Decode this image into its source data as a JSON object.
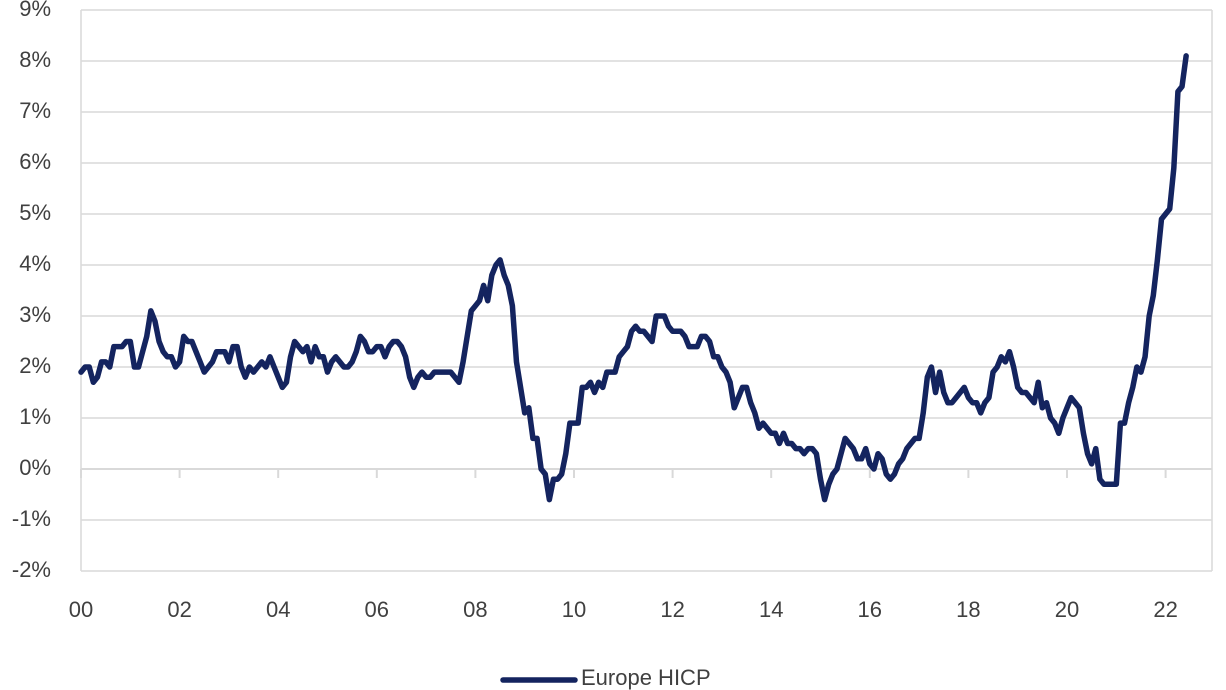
{
  "chart_data": {
    "type": "line",
    "categories": [
      "00",
      null,
      null,
      null,
      null,
      null,
      null,
      null,
      null,
      null,
      null,
      null,
      null,
      null,
      null,
      null,
      null,
      null,
      null,
      null,
      null,
      null,
      null,
      null,
      "02",
      null,
      null,
      null,
      null,
      null,
      null,
      null,
      null,
      null,
      null,
      null,
      null,
      null,
      null,
      null,
      null,
      null,
      null,
      null,
      null,
      null,
      null,
      null,
      "04",
      null,
      null,
      null,
      null,
      null,
      null,
      null,
      null,
      null,
      null,
      null,
      null,
      null,
      null,
      null,
      null,
      null,
      null,
      null,
      null,
      null,
      null,
      null,
      "06",
      null,
      null,
      null,
      null,
      null,
      null,
      null,
      null,
      null,
      null,
      null,
      null,
      null,
      null,
      null,
      null,
      null,
      null,
      null,
      null,
      null,
      null,
      null,
      "08",
      null,
      null,
      null,
      null,
      null,
      null,
      null,
      null,
      null,
      null,
      null,
      null,
      null,
      null,
      null,
      null,
      null,
      null,
      null,
      null,
      null,
      null,
      null,
      "10",
      null,
      null,
      null,
      null,
      null,
      null,
      null,
      null,
      null,
      null,
      null,
      null,
      null,
      null,
      null,
      null,
      null,
      null,
      null,
      null,
      null,
      null,
      null,
      "12",
      null,
      null,
      null,
      null,
      null,
      null,
      null,
      null,
      null,
      null,
      null,
      null,
      null,
      null,
      null,
      null,
      null,
      null,
      null,
      null,
      null,
      null,
      null,
      "14",
      null,
      null,
      null,
      null,
      null,
      null,
      null,
      null,
      null,
      null,
      null,
      null,
      null,
      null,
      null,
      null,
      null,
      null,
      null,
      null,
      null,
      null,
      null,
      "16",
      null,
      null,
      null,
      null,
      null,
      null,
      null,
      null,
      null,
      null,
      null,
      null,
      null,
      null,
      null,
      null,
      null,
      null,
      null,
      null,
      null,
      null,
      null,
      "18",
      null,
      null,
      null,
      null,
      null,
      null,
      null,
      null,
      null,
      null,
      null,
      null,
      null,
      null,
      null,
      null,
      null,
      null,
      null,
      null,
      null,
      null,
      null,
      "20",
      null,
      null,
      null,
      null,
      null,
      null,
      null,
      null,
      null,
      null,
      null,
      null,
      null,
      null,
      null,
      null,
      null,
      null,
      null,
      null,
      null,
      null,
      null,
      "22",
      null,
      null,
      null,
      null,
      null
    ],
    "series": [
      {
        "name": "Europe HICP",
        "color": "#14245f",
        "values": [
          1.9,
          2.0,
          2.0,
          1.7,
          1.8,
          2.1,
          2.1,
          2.0,
          2.4,
          2.4,
          2.4,
          2.5,
          2.5,
          2.0,
          2.0,
          2.3,
          2.6,
          3.1,
          2.9,
          2.5,
          2.3,
          2.2,
          2.2,
          2.0,
          2.1,
          2.6,
          2.5,
          2.5,
          2.3,
          2.1,
          1.9,
          2.0,
          2.1,
          2.3,
          2.3,
          2.3,
          2.1,
          2.4,
          2.4,
          2.0,
          1.8,
          2.0,
          1.9,
          2.0,
          2.1,
          2.0,
          2.2,
          2.0,
          1.8,
          1.6,
          1.7,
          2.2,
          2.5,
          2.4,
          2.3,
          2.4,
          2.1,
          2.4,
          2.2,
          2.2,
          1.9,
          2.1,
          2.2,
          2.1,
          2.0,
          2.0,
          2.1,
          2.3,
          2.6,
          2.5,
          2.3,
          2.3,
          2.4,
          2.4,
          2.2,
          2.4,
          2.5,
          2.5,
          2.4,
          2.2,
          1.8,
          1.6,
          1.8,
          1.9,
          1.8,
          1.8,
          1.9,
          1.9,
          1.9,
          1.9,
          1.9,
          1.8,
          1.7,
          2.1,
          2.6,
          3.1,
          3.2,
          3.3,
          3.6,
          3.3,
          3.8,
          4.0,
          4.1,
          3.8,
          3.6,
          3.2,
          2.1,
          1.6,
          1.1,
          1.2,
          0.6,
          0.6,
          0.0,
          -0.1,
          -0.6,
          -0.2,
          -0.2,
          -0.1,
          0.3,
          0.9,
          0.9,
          0.9,
          1.6,
          1.6,
          1.7,
          1.5,
          1.7,
          1.6,
          1.9,
          1.9,
          1.9,
          2.2,
          2.3,
          2.4,
          2.7,
          2.8,
          2.7,
          2.7,
          2.6,
          2.5,
          3.0,
          3.0,
          3.0,
          2.8,
          2.7,
          2.7,
          2.7,
          2.6,
          2.4,
          2.4,
          2.4,
          2.6,
          2.6,
          2.5,
          2.2,
          2.2,
          2.0,
          1.9,
          1.7,
          1.2,
          1.4,
          1.6,
          1.6,
          1.3,
          1.1,
          0.8,
          0.9,
          0.8,
          0.7,
          0.7,
          0.5,
          0.7,
          0.5,
          0.5,
          0.4,
          0.4,
          0.3,
          0.4,
          0.4,
          0.3,
          -0.2,
          -0.6,
          -0.3,
          -0.1,
          0.0,
          0.3,
          0.6,
          0.5,
          0.4,
          0.2,
          0.2,
          0.4,
          0.1,
          0.0,
          0.3,
          0.2,
          -0.1,
          -0.2,
          -0.1,
          0.1,
          0.2,
          0.4,
          0.5,
          0.6,
          0.6,
          1.1,
          1.8,
          2.0,
          1.5,
          1.9,
          1.5,
          1.3,
          1.3,
          1.4,
          1.5,
          1.6,
          1.4,
          1.3,
          1.3,
          1.1,
          1.3,
          1.4,
          1.9,
          2.0,
          2.2,
          2.1,
          2.3,
          2.0,
          1.6,
          1.5,
          1.5,
          1.4,
          1.3,
          1.7,
          1.2,
          1.3,
          1.0,
          0.9,
          0.7,
          1.0,
          1.2,
          1.4,
          1.3,
          1.2,
          0.7,
          0.3,
          0.1,
          0.4,
          -0.2,
          -0.3,
          -0.3,
          -0.3,
          -0.3,
          0.9,
          0.9,
          1.3,
          1.6,
          2.0,
          1.9,
          2.2,
          3.0,
          3.4,
          4.1,
          4.9,
          5.0,
          5.1,
          5.9,
          7.4,
          7.5,
          8.1
        ]
      }
    ],
    "ylim": [
      -2,
      9
    ],
    "yticks": [
      {
        "value": -2,
        "label": "-2%"
      },
      {
        "value": -1,
        "label": "-1%"
      },
      {
        "value": 0,
        "label": "0%"
      },
      {
        "value": 1,
        "label": "1%"
      },
      {
        "value": 2,
        "label": "2%"
      },
      {
        "value": 3,
        "label": "3%"
      },
      {
        "value": 4,
        "label": "4%"
      },
      {
        "value": 5,
        "label": "5%"
      },
      {
        "value": 6,
        "label": "6%"
      },
      {
        "value": 7,
        "label": "7%"
      },
      {
        "value": 8,
        "label": "8%"
      },
      {
        "value": 9,
        "label": "9%"
      }
    ],
    "grid": true,
    "legend": "bottom"
  }
}
